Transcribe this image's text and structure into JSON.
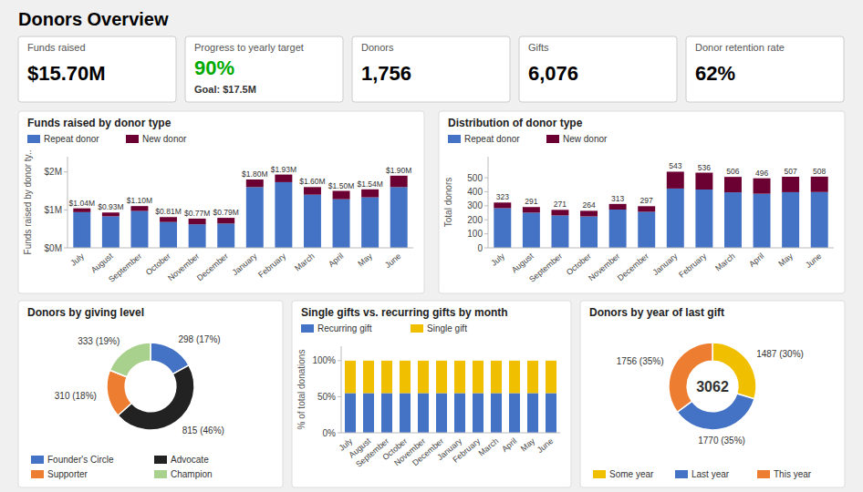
{
  "title": "Donors Overview",
  "chart_data": [
    {
      "type": "kpi",
      "title": "Funds raised",
      "values": [
        15.7
      ],
      "value_labels": [
        "$15.70M"
      ],
      "color": "#000000"
    },
    {
      "type": "kpi",
      "title": "Progress to yearly target",
      "values": [
        90
      ],
      "value_labels": [
        "90%"
      ],
      "color": "#00aa00",
      "subtitle": "Goal: $17.5M"
    },
    {
      "type": "kpi",
      "title": "Donors",
      "values": [
        1756
      ],
      "value_labels": [
        "1,756"
      ],
      "color": "#000000"
    },
    {
      "type": "kpi",
      "title": "Gifts",
      "values": [
        6076
      ],
      "value_labels": [
        "6,076"
      ],
      "color": "#000000"
    },
    {
      "type": "kpi",
      "title": "Donor retention rate",
      "values": [
        62
      ],
      "value_labels": [
        "62%"
      ],
      "color": "#000000"
    },
    {
      "type": "bar",
      "title": "Funds raised by donor type",
      "ylabel": "Funds raised by donor ty..",
      "categories": [
        "July",
        "August",
        "September",
        "October",
        "November",
        "December",
        "January",
        "February",
        "March",
        "April",
        "May",
        "June"
      ],
      "series": [
        {
          "name": "Repeat donor",
          "color": "#4472c4",
          "values": [
            0.94,
            0.83,
            0.97,
            0.68,
            0.62,
            0.64,
            1.6,
            1.73,
            1.4,
            1.28,
            1.33,
            1.6
          ]
        },
        {
          "name": "New donor",
          "color": "#6b0032",
          "values": [
            0.1,
            0.1,
            0.13,
            0.13,
            0.15,
            0.15,
            0.2,
            0.2,
            0.2,
            0.22,
            0.21,
            0.3
          ]
        }
      ],
      "totals": [
        1.04,
        0.93,
        1.1,
        0.81,
        0.77,
        0.79,
        1.8,
        1.93,
        1.6,
        1.5,
        1.54,
        1.9
      ],
      "total_labels": [
        "$1.04M",
        "$0.93M",
        "$1.10M",
        "$0.81M",
        "$0.77M",
        "$0.79M",
        "$1.80M",
        "$1.93M",
        "$1.60M",
        "$1.50M",
        "$1.54M",
        "$1.90M"
      ],
      "stacked": true,
      "ylim": [
        0,
        2.4
      ],
      "yticks": [
        {
          "value": 0,
          "label": "$0M"
        },
        {
          "value": 1,
          "label": "$1M"
        },
        {
          "value": 2,
          "label": "$2M"
        }
      ],
      "grid": false,
      "legend": "top"
    },
    {
      "type": "bar",
      "title": "Distribution of donor type",
      "ylabel": "Total donors",
      "categories": [
        "July",
        "August",
        "September",
        "October",
        "November",
        "December",
        "January",
        "February",
        "March",
        "April",
        "May",
        "June"
      ],
      "series": [
        {
          "name": "Repeat donor",
          "color": "#4472c4",
          "values": [
            283,
            251,
            231,
            224,
            273,
            257,
            423,
            416,
            396,
            386,
            397,
            398
          ]
        },
        {
          "name": "New donor",
          "color": "#6b0032",
          "values": [
            40,
            40,
            40,
            40,
            40,
            40,
            120,
            120,
            110,
            110,
            110,
            110
          ]
        }
      ],
      "totals": [
        323,
        291,
        271,
        264,
        313,
        297,
        543,
        536,
        506,
        496,
        507,
        508
      ],
      "stacked": true,
      "ylim": [
        0,
        650
      ],
      "yticks": [
        0,
        100,
        200,
        300,
        400,
        500
      ],
      "grid": false,
      "legend": "top"
    },
    {
      "type": "bar",
      "title": "Single gifts vs. recurring gifts by month",
      "ylabel": "% of total donations",
      "categories": [
        "July",
        "August",
        "September",
        "October",
        "November",
        "December",
        "January",
        "February",
        "March",
        "April",
        "May",
        "June"
      ],
      "series": [
        {
          "name": "Recurring gift",
          "color": "#4472c4",
          "values": [
            55,
            55,
            55,
            55,
            55,
            55,
            55,
            55,
            55,
            55,
            55,
            55
          ]
        },
        {
          "name": "Single gift",
          "color": "#f0c000",
          "values": [
            45,
            45,
            45,
            45,
            45,
            45,
            45,
            45,
            45,
            45,
            45,
            45
          ]
        }
      ],
      "stacked": true,
      "ylim": [
        0,
        120
      ],
      "yticks": [
        {
          "value": 0,
          "label": "0%"
        },
        {
          "value": 50,
          "label": "50%"
        },
        {
          "value": 100,
          "label": "100%"
        }
      ],
      "grid": false,
      "legend": "top"
    },
    {
      "type": "donut",
      "title": "Donors by giving level",
      "categories": [
        "Founder's Circle",
        "Advocate",
        "Supporter",
        "Champion"
      ],
      "values": [
        298,
        815,
        310,
        333
      ],
      "value_labels": [
        "298 (17%)",
        "815 (46%)",
        "310 (18%)",
        "333 (19%)"
      ],
      "colors": [
        "#4472c4",
        "#222222",
        "#ed7d31",
        "#a9d18e"
      ],
      "data_labels": true,
      "legend": "bottom"
    },
    {
      "type": "donut",
      "title": "Donors by year of last gift",
      "categories": [
        "Some year",
        "Last year",
        "This year"
      ],
      "values": [
        1487,
        1770,
        1756
      ],
      "value_labels": [
        "1487 (30%)",
        "1770 (35%)",
        "1756 (35%)"
      ],
      "colors": [
        "#f0c000",
        "#4472c4",
        "#ed7d31"
      ],
      "annotations": [
        "3062"
      ],
      "data_labels": true,
      "legend": "bottom"
    }
  ]
}
